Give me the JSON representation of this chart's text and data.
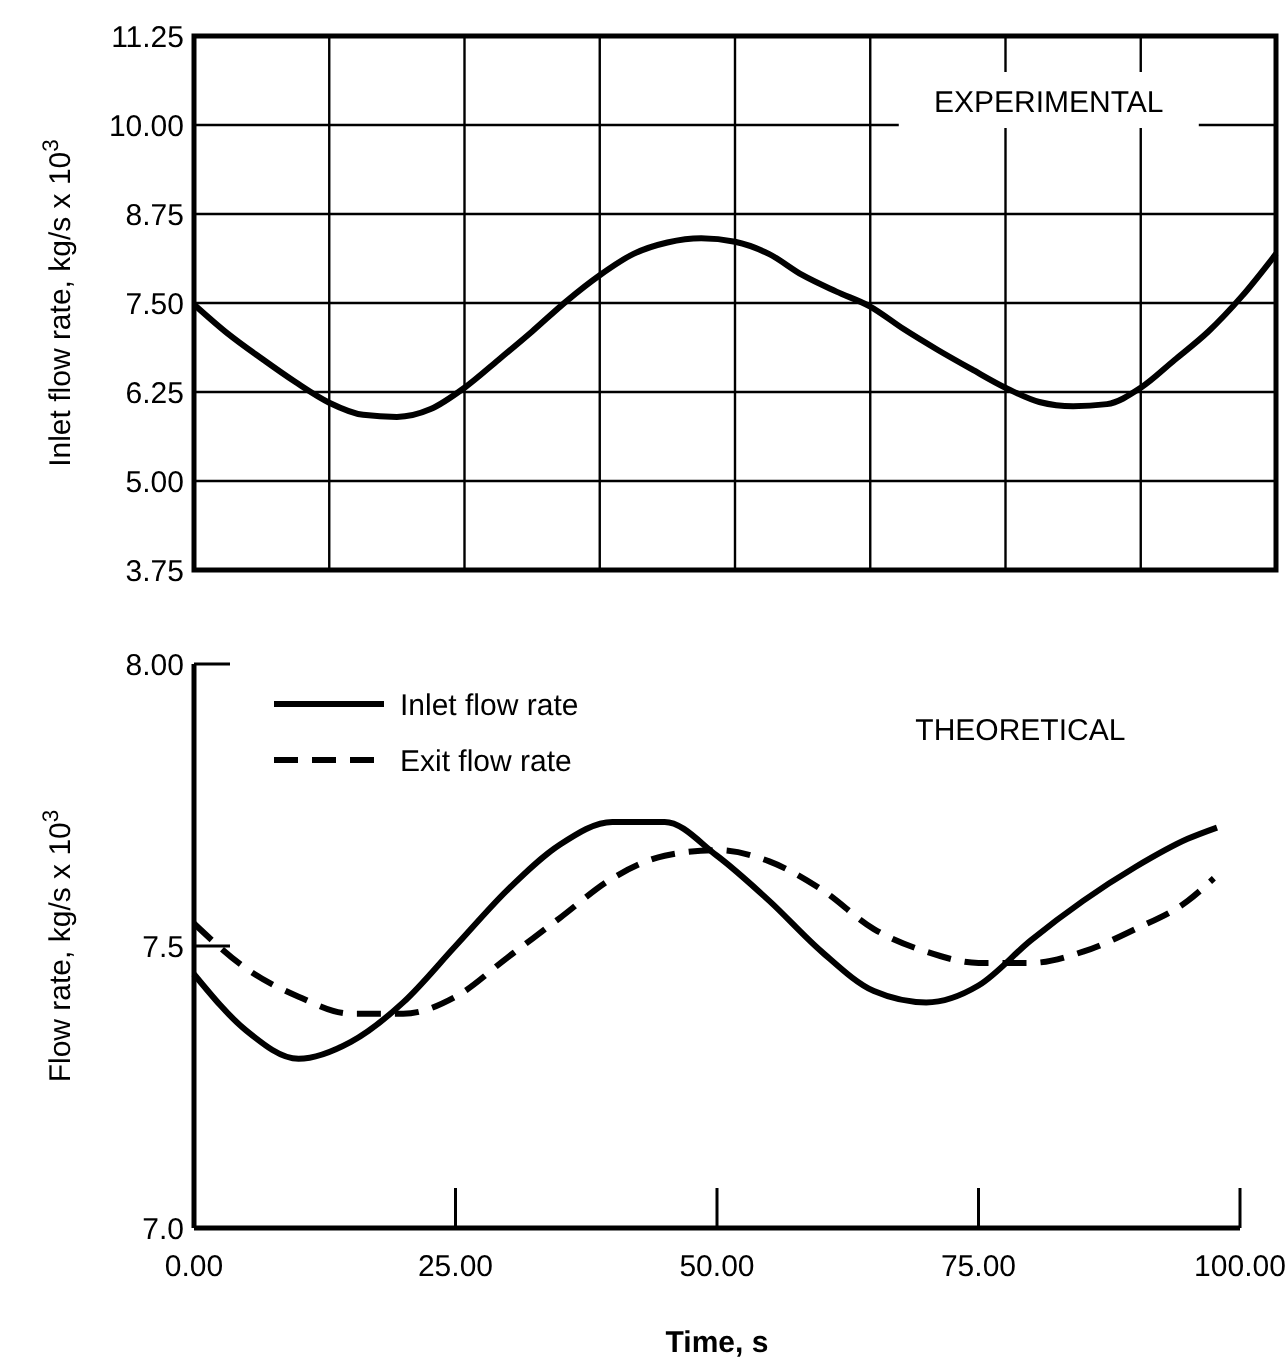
{
  "chart_data": [
    {
      "type": "line",
      "ylabel": "Inlet flow rate, kg/s x 10$^{3}$",
      "annotations": [
        "EXPERIMENTAL"
      ],
      "categories": [
        null,
        null,
        null,
        null,
        null,
        null,
        null,
        null,
        null,
        null,
        null,
        null,
        null,
        null,
        null,
        null,
        null,
        null,
        null,
        null,
        null,
        null,
        null,
        null,
        null,
        null,
        null,
        null,
        null,
        null,
        null,
        null,
        null
      ],
      "series": [
        {
          "color": "#000000",
          "values": [
            7.48,
            7.07,
            6.72,
            6.39,
            6.1,
            5.93,
            5.9,
            6.01,
            6.31,
            6.7,
            7.1,
            7.52,
            7.89,
            8.19,
            8.35,
            8.41,
            8.36,
            8.19,
            7.89,
            7.66,
            7.45,
            7.13,
            6.84,
            6.57,
            6.31,
            6.11,
            6.05,
            6.08,
            6.31,
            6.7,
            7.1,
            7.6,
            8.19
          ]
        }
      ],
      "ylim": [
        3.75,
        11.25
      ],
      "yticks": [
        {
          "value": 3.75,
          "label": "3.75"
        },
        {
          "value": 5,
          "label": "5.00"
        },
        {
          "value": 6.25,
          "label": "6.25"
        },
        {
          "value": 7.5,
          "label": "7.50"
        },
        {
          "value": 8.75,
          "label": "8.75"
        },
        {
          "value": 10,
          "label": "10.00"
        },
        {
          "value": 11.25,
          "label": "11.25"
        }
      ],
      "grid": true,
      "tick_labels": "y",
      "line_style": "solid"
    },
    {
      "type": "line",
      "xlabel": "Time, s",
      "ylabel": "Flow rate, kg/s x 10$^{3}$",
      "annotations": [
        "THEORETICAL"
      ],
      "series": [
        {
          "name": "Inlet flow rate",
          "color": "#000000",
          "line_style": "solid",
          "x": [
            0,
            5,
            10,
            15,
            20,
            25,
            30,
            35,
            40,
            45,
            50,
            55,
            60,
            65,
            70,
            75,
            80,
            85,
            90,
            95,
            97.8
          ],
          "values": [
            7.45,
            7.35,
            7.3,
            7.33,
            7.4,
            7.5,
            7.6,
            7.68,
            7.72,
            7.72,
            7.66,
            7.58,
            7.49,
            7.42,
            7.4,
            7.43,
            7.51,
            7.58,
            7.64,
            7.69,
            7.71
          ]
        },
        {
          "name": "Exit flow rate",
          "color": "#000000",
          "line_style": "dashed",
          "x": [
            0,
            5,
            10,
            15,
            20,
            25,
            30,
            35,
            40,
            45,
            50,
            55,
            60,
            65,
            70,
            75,
            80,
            85,
            90,
            95,
            97.5
          ],
          "values": [
            7.54,
            7.46,
            7.41,
            7.38,
            7.38,
            7.41,
            7.48,
            7.55,
            7.62,
            7.66,
            7.67,
            7.65,
            7.6,
            7.53,
            7.49,
            7.47,
            7.47,
            7.49,
            7.53,
            7.58,
            7.62
          ]
        }
      ],
      "xlim": [
        0,
        100
      ],
      "xticks": [
        {
          "value": 0,
          "label": "0.00"
        },
        {
          "value": 25,
          "label": "25.00"
        },
        {
          "value": 50,
          "label": "50.00"
        },
        {
          "value": 75,
          "label": "75.00"
        },
        {
          "value": 100,
          "label": "100.00"
        }
      ],
      "ylim": [
        7,
        8
      ],
      "yticks": [
        {
          "value": 7,
          "label": "7.0"
        },
        {
          "value": 7.5,
          "label": "7.5"
        },
        {
          "value": 8,
          "label": "8.00"
        }
      ],
      "grid": false,
      "legend": "top left"
    }
  ]
}
